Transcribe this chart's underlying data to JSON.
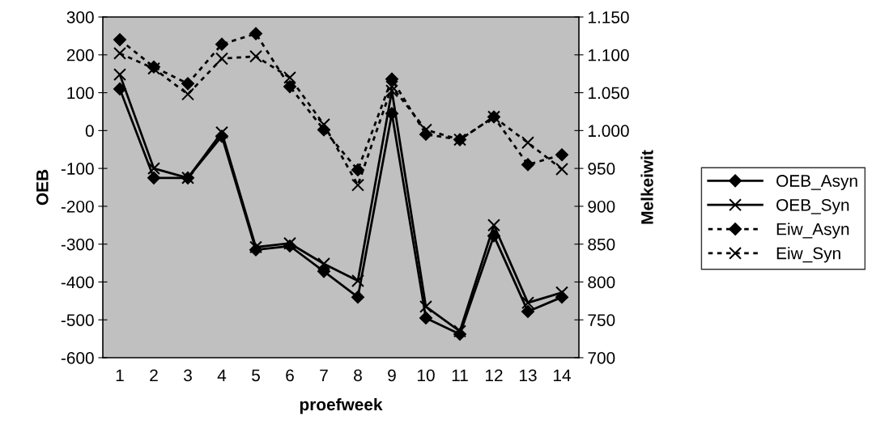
{
  "chart_data": {
    "type": "line",
    "xlabel": "proefweek",
    "ylabel": "OEB",
    "y2label": "Melkeiwit",
    "categories": [
      "1",
      "2",
      "3",
      "4",
      "5",
      "6",
      "7",
      "8",
      "9",
      "10",
      "11",
      "12",
      "13",
      "14"
    ],
    "ylim": [
      -600,
      300
    ],
    "yticks": [
      -600,
      -500,
      -400,
      -300,
      -200,
      -100,
      0,
      100,
      200,
      300
    ],
    "y2lim": [
      700,
      1150
    ],
    "y2ticks": [
      {
        "value": 700,
        "label": "700"
      },
      {
        "value": 750,
        "label": "750"
      },
      {
        "value": 800,
        "label": "800"
      },
      {
        "value": 850,
        "label": "850"
      },
      {
        "value": 900,
        "label": "900"
      },
      {
        "value": 950,
        "label": "950"
      },
      {
        "value": 1000,
        "label": "1.000"
      },
      {
        "value": 1050,
        "label": "1.050"
      },
      {
        "value": 1100,
        "label": "1.100"
      },
      {
        "value": 1150,
        "label": "1.150"
      }
    ],
    "grid": false,
    "legend": "right",
    "series": [
      {
        "name": "OEB_Asyn",
        "color": "#000000",
        "marker": "diamond",
        "line_style": "solid",
        "values": [
          110,
          -125,
          -125,
          -15,
          -315,
          -305,
          -372,
          -440,
          45,
          -495,
          -538,
          -278,
          -478,
          -440
        ]
      },
      {
        "name": "OEB_Syn",
        "color": "#000000",
        "marker": "cross",
        "line_style": "solid",
        "values": [
          148,
          -100,
          -125,
          -5,
          -308,
          -298,
          -352,
          -397,
          105,
          -465,
          -530,
          -250,
          -455,
          -428
        ]
      },
      {
        "name": "Eiw_Asyn",
        "color": "#000000",
        "marker": "diamond",
        "line_style": "dotted",
        "axis": "y2",
        "values": [
          1120,
          1084,
          1062,
          1114,
          1128,
          1058,
          1001,
          948,
          1068,
          995,
          988,
          1018,
          955,
          968
        ]
      },
      {
        "name": "Eiw_Syn",
        "color": "#000000",
        "marker": "cross",
        "line_style": "dotted",
        "axis": "y2",
        "values": [
          1102,
          1082,
          1048,
          1095,
          1098,
          1070,
          1008,
          928,
          1058,
          1001,
          988,
          1018,
          984,
          949
        ]
      }
    ]
  }
}
